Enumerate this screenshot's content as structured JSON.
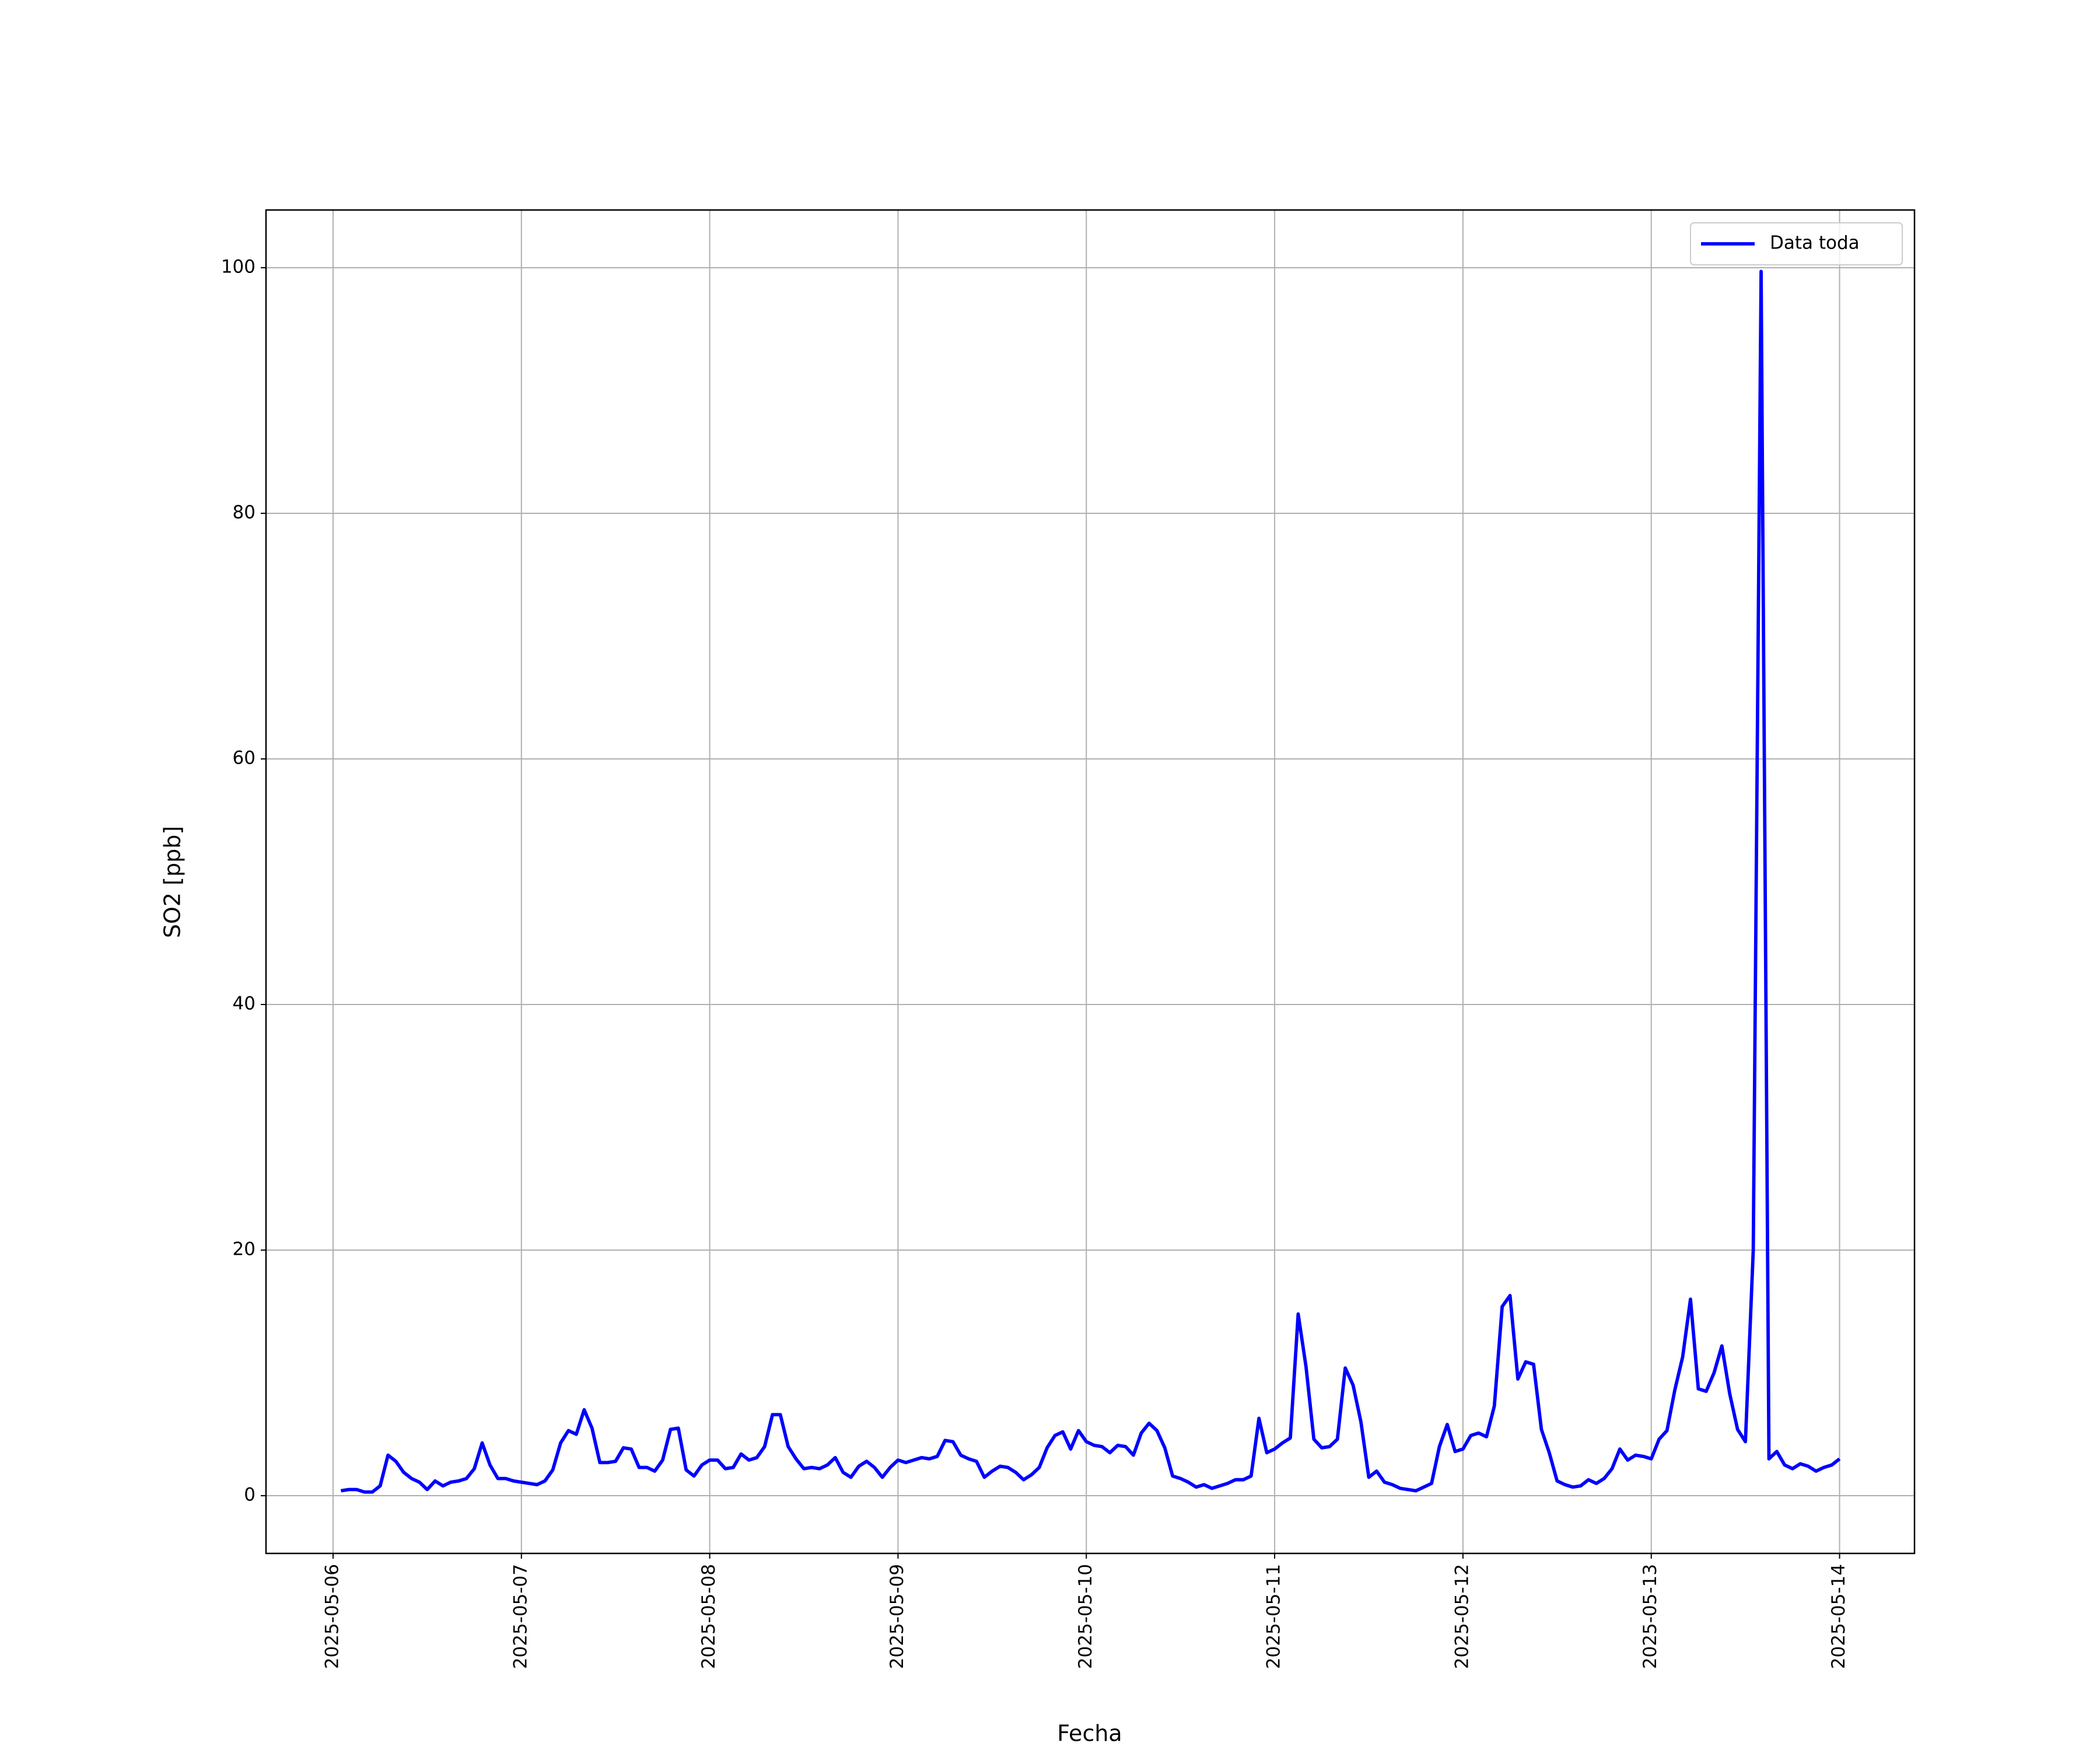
{
  "chart_data": {
    "type": "line",
    "x_label": "Fecha",
    "y_label": "SO2 [ppb]",
    "x": [
      "2025-05-06 01:00",
      "2025-05-06 02:00",
      "2025-05-06 03:00",
      "2025-05-06 04:00",
      "2025-05-06 05:00",
      "2025-05-06 06:00",
      "2025-05-06 07:00",
      "2025-05-06 08:00",
      "2025-05-06 09:00",
      "2025-05-06 10:00",
      "2025-05-06 11:00",
      "2025-05-06 12:00",
      "2025-05-06 13:00",
      "2025-05-06 14:00",
      "2025-05-06 15:00",
      "2025-05-06 16:00",
      "2025-05-06 17:00",
      "2025-05-06 18:00",
      "2025-05-06 19:00",
      "2025-05-06 20:00",
      "2025-05-06 21:00",
      "2025-05-06 22:00",
      "2025-05-06 23:00",
      "2025-05-07 00:00",
      "2025-05-07 01:00",
      "2025-05-07 02:00",
      "2025-05-07 03:00",
      "2025-05-07 04:00",
      "2025-05-07 05:00",
      "2025-05-07 06:00",
      "2025-05-07 07:00",
      "2025-05-07 08:00",
      "2025-05-07 09:00",
      "2025-05-07 10:00",
      "2025-05-07 11:00",
      "2025-05-07 12:00",
      "2025-05-07 13:00",
      "2025-05-07 14:00",
      "2025-05-07 15:00",
      "2025-05-07 16:00",
      "2025-05-07 17:00",
      "2025-05-07 18:00",
      "2025-05-07 19:00",
      "2025-05-07 20:00",
      "2025-05-07 21:00",
      "2025-05-07 22:00",
      "2025-05-07 23:00",
      "2025-05-08 00:00",
      "2025-05-08 01:00",
      "2025-05-08 02:00",
      "2025-05-08 03:00",
      "2025-05-08 04:00",
      "2025-05-08 05:00",
      "2025-05-08 06:00",
      "2025-05-08 07:00",
      "2025-05-08 08:00",
      "2025-05-08 09:00",
      "2025-05-08 10:00",
      "2025-05-08 11:00",
      "2025-05-08 12:00",
      "2025-05-08 13:00",
      "2025-05-08 14:00",
      "2025-05-08 15:00",
      "2025-05-08 16:00",
      "2025-05-08 17:00",
      "2025-05-08 18:00",
      "2025-05-08 19:00",
      "2025-05-08 20:00",
      "2025-05-08 21:00",
      "2025-05-08 22:00",
      "2025-05-08 23:00",
      "2025-05-09 00:00",
      "2025-05-09 01:00",
      "2025-05-09 02:00",
      "2025-05-09 03:00",
      "2025-05-09 04:00",
      "2025-05-09 05:00",
      "2025-05-09 06:00",
      "2025-05-09 07:00",
      "2025-05-09 08:00",
      "2025-05-09 09:00",
      "2025-05-09 10:00",
      "2025-05-09 11:00",
      "2025-05-09 12:00",
      "2025-05-09 13:00",
      "2025-05-09 14:00",
      "2025-05-09 15:00",
      "2025-05-09 16:00",
      "2025-05-09 17:00",
      "2025-05-09 18:00",
      "2025-05-09 19:00",
      "2025-05-09 20:00",
      "2025-05-09 21:00",
      "2025-05-09 22:00",
      "2025-05-09 23:00",
      "2025-05-10 00:00",
      "2025-05-10 01:00",
      "2025-05-10 02:00",
      "2025-05-10 03:00",
      "2025-05-10 04:00",
      "2025-05-10 05:00",
      "2025-05-10 06:00",
      "2025-05-10 07:00",
      "2025-05-10 08:00",
      "2025-05-10 09:00",
      "2025-05-10 10:00",
      "2025-05-10 11:00",
      "2025-05-10 12:00",
      "2025-05-10 13:00",
      "2025-05-10 14:00",
      "2025-05-10 15:00",
      "2025-05-10 16:00",
      "2025-05-10 17:00",
      "2025-05-10 18:00",
      "2025-05-10 19:00",
      "2025-05-10 20:00",
      "2025-05-10 21:00",
      "2025-05-10 22:00",
      "2025-05-10 23:00",
      "2025-05-11 00:00",
      "2025-05-11 01:00",
      "2025-05-11 02:00",
      "2025-05-11 03:00",
      "2025-05-11 04:00",
      "2025-05-11 05:00",
      "2025-05-11 06:00",
      "2025-05-11 07:00",
      "2025-05-11 08:00",
      "2025-05-11 09:00",
      "2025-05-11 10:00",
      "2025-05-11 11:00",
      "2025-05-11 12:00",
      "2025-05-11 13:00",
      "2025-05-11 14:00",
      "2025-05-11 15:00",
      "2025-05-11 16:00",
      "2025-05-11 17:00",
      "2025-05-11 18:00",
      "2025-05-11 19:00",
      "2025-05-11 20:00",
      "2025-05-11 21:00",
      "2025-05-11 22:00",
      "2025-05-11 23:00",
      "2025-05-12 00:00",
      "2025-05-12 01:00",
      "2025-05-12 02:00",
      "2025-05-12 03:00",
      "2025-05-12 04:00",
      "2025-05-12 05:00",
      "2025-05-12 06:00",
      "2025-05-12 07:00",
      "2025-05-12 08:00",
      "2025-05-12 09:00",
      "2025-05-12 10:00",
      "2025-05-12 11:00",
      "2025-05-12 12:00",
      "2025-05-12 13:00",
      "2025-05-12 14:00",
      "2025-05-12 15:00",
      "2025-05-12 16:00",
      "2025-05-12 17:00",
      "2025-05-12 18:00",
      "2025-05-12 19:00",
      "2025-05-12 20:00",
      "2025-05-12 21:00",
      "2025-05-12 22:00",
      "2025-05-12 23:00",
      "2025-05-13 00:00",
      "2025-05-13 01:00",
      "2025-05-13 02:00",
      "2025-05-13 03:00",
      "2025-05-13 04:00",
      "2025-05-13 05:00",
      "2025-05-13 06:00",
      "2025-05-13 07:00",
      "2025-05-13 08:00",
      "2025-05-13 09:00",
      "2025-05-13 10:00",
      "2025-05-13 11:00",
      "2025-05-13 12:00",
      "2025-05-13 13:00",
      "2025-05-13 14:00",
      "2025-05-13 15:00",
      "2025-05-13 16:00",
      "2025-05-13 17:00",
      "2025-05-13 18:00",
      "2025-05-13 19:00",
      "2025-05-13 20:00",
      "2025-05-13 21:00",
      "2025-05-13 22:00",
      "2025-05-13 23:00",
      "2025-05-14 00:00"
    ],
    "series": [
      {
        "name": "Data toda",
        "color": "#0000ff",
        "values": [
          0.4,
          0.5,
          0.5,
          0.3,
          0.3,
          0.8,
          3.3,
          2.8,
          1.9,
          1.4,
          1.1,
          0.5,
          1.2,
          0.8,
          1.1,
          1.2,
          1.4,
          2.2,
          4.3,
          2.5,
          1.4,
          1.4,
          1.2,
          1.1,
          1.0,
          0.9,
          1.2,
          2.1,
          4.3,
          5.3,
          5.0,
          7.0,
          5.5,
          2.7,
          2.7,
          2.8,
          3.9,
          3.8,
          2.3,
          2.3,
          2.0,
          2.9,
          5.4,
          5.5,
          2.1,
          1.6,
          2.5,
          2.9,
          2.9,
          2.2,
          2.3,
          3.4,
          2.9,
          3.1,
          4.0,
          6.6,
          6.6,
          4.0,
          3.0,
          2.2,
          2.3,
          2.2,
          2.5,
          3.1,
          1.9,
          1.5,
          2.4,
          2.8,
          2.3,
          1.5,
          2.3,
          2.9,
          2.7,
          2.9,
          3.1,
          3.0,
          3.2,
          4.5,
          4.4,
          3.3,
          3.0,
          2.8,
          1.5,
          2.0,
          2.4,
          2.3,
          1.9,
          1.3,
          1.7,
          2.3,
          3.9,
          4.9,
          5.2,
          3.8,
          5.3,
          4.4,
          4.1,
          4.0,
          3.5,
          4.1,
          4.0,
          3.3,
          5.1,
          5.9,
          5.3,
          3.9,
          1.6,
          1.4,
          1.1,
          0.7,
          0.9,
          0.6,
          0.8,
          1.0,
          1.3,
          1.3,
          1.6,
          6.3,
          3.5,
          3.8,
          4.3,
          4.7,
          14.8,
          10.5,
          4.6,
          3.9,
          4.0,
          4.6,
          10.4,
          9.0,
          6.0,
          1.5,
          2.0,
          1.1,
          0.9,
          0.6,
          0.5,
          0.4,
          0.7,
          1.0,
          4.0,
          5.8,
          3.6,
          3.8,
          4.9,
          5.1,
          4.8,
          7.3,
          15.4,
          16.3,
          9.5,
          10.9,
          10.7,
          5.4,
          3.5,
          1.2,
          0.9,
          0.7,
          0.8,
          1.3,
          1.0,
          1.4,
          2.2,
          3.8,
          2.9,
          3.3,
          3.2,
          3.0,
          4.6,
          5.3,
          8.6,
          11.3,
          16.0,
          8.7,
          8.5,
          10.0,
          12.2,
          8.3,
          5.4,
          4.4,
          20.0,
          99.7,
          3.0,
          3.6,
          2.5,
          2.2,
          2.6,
          2.4,
          2.0,
          2.3,
          2.5,
          3.0
        ]
      }
    ],
    "xlim": [
      "2025-05-05 15:27",
      "2025-05-14 09:33"
    ],
    "xticks": [
      "2025-05-06",
      "2025-05-07",
      "2025-05-08",
      "2025-05-09",
      "2025-05-10",
      "2025-05-11",
      "2025-05-12",
      "2025-05-13",
      "2025-05-14"
    ],
    "ylim": [
      -4.7,
      104.7
    ],
    "yticks": [
      0,
      20,
      40,
      60,
      80,
      100
    ],
    "grid": true,
    "legend": "upper right"
  }
}
